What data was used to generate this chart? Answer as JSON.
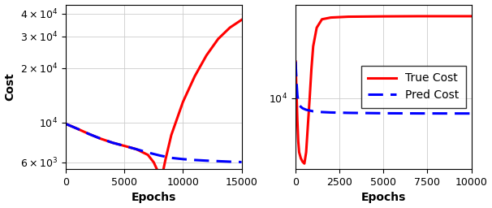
{
  "left": {
    "xlabel": "Epochs",
    "ylabel": "Cost",
    "xlim": [
      0,
      15000
    ],
    "xticks": [
      0,
      5000,
      10000,
      15000
    ],
    "ylim": [
      5500,
      45000
    ],
    "yticks": [
      6000,
      10000,
      20000,
      30000,
      40000
    ],
    "ytick_labels": [
      "$6 \\times 10^3$",
      "$10^4$",
      "$2 \\times 10^4$",
      "$3 \\times 10^4$",
      "$4 \\times 10^4$"
    ],
    "true_cost_x": [
      0,
      500,
      1000,
      2000,
      3000,
      4000,
      5000,
      6000,
      7000,
      7500,
      8000,
      8200,
      8500,
      9000,
      10000,
      11000,
      12000,
      13000,
      14000,
      15000
    ],
    "true_cost_y": [
      9800,
      9500,
      9200,
      8600,
      8100,
      7700,
      7400,
      7100,
      6600,
      6000,
      5100,
      5000,
      6200,
      8500,
      13000,
      18000,
      23500,
      29000,
      33500,
      37000
    ],
    "pred_cost_x": [
      0,
      1000,
      2000,
      3000,
      4000,
      5000,
      6000,
      7000,
      8000,
      9000,
      10000,
      11000,
      12000,
      13000,
      14000,
      15000
    ],
    "pred_cost_y": [
      9800,
      9200,
      8600,
      8100,
      7700,
      7400,
      7100,
      6800,
      6550,
      6350,
      6250,
      6180,
      6130,
      6090,
      6050,
      6020
    ]
  },
  "right": {
    "xlabel": "Epochs",
    "xlim": [
      0,
      10000
    ],
    "xticks": [
      0,
      2500,
      5000,
      7500,
      10000
    ],
    "ylim": [
      3200,
      45000
    ],
    "yticks": [
      10000
    ],
    "ytick_labels": [
      "$10^4$"
    ],
    "true_cost_x": [
      0,
      50,
      100,
      150,
      200,
      300,
      400,
      500,
      600,
      700,
      800,
      900,
      1000,
      1200,
      1500,
      2000,
      3000,
      5000,
      7000,
      10000
    ],
    "true_cost_y": [
      18000,
      11000,
      7000,
      5000,
      4200,
      3800,
      3600,
      3500,
      4200,
      6500,
      10000,
      16000,
      23000,
      31000,
      35500,
      36500,
      37000,
      37200,
      37300,
      37300
    ],
    "pred_cost_x": [
      0,
      50,
      100,
      150,
      200,
      300,
      400,
      500,
      600,
      700,
      800,
      1000,
      1500,
      2000,
      3000,
      5000,
      7000,
      10000
    ],
    "pred_cost_y": [
      18000,
      13000,
      10500,
      9500,
      9000,
      8700,
      8500,
      8400,
      8300,
      8250,
      8200,
      8100,
      8000,
      7950,
      7900,
      7850,
      7830,
      7820
    ]
  },
  "legend": {
    "true_label": "True Cost",
    "pred_label": "Pred Cost",
    "true_color": "#ff0000",
    "pred_color": "#0000ff",
    "true_lw": 2.2,
    "pred_lw": 2.2
  },
  "label_fontsize": 10,
  "tick_fontsize": 9,
  "legend_fontsize": 10,
  "background_color": "#ffffff"
}
